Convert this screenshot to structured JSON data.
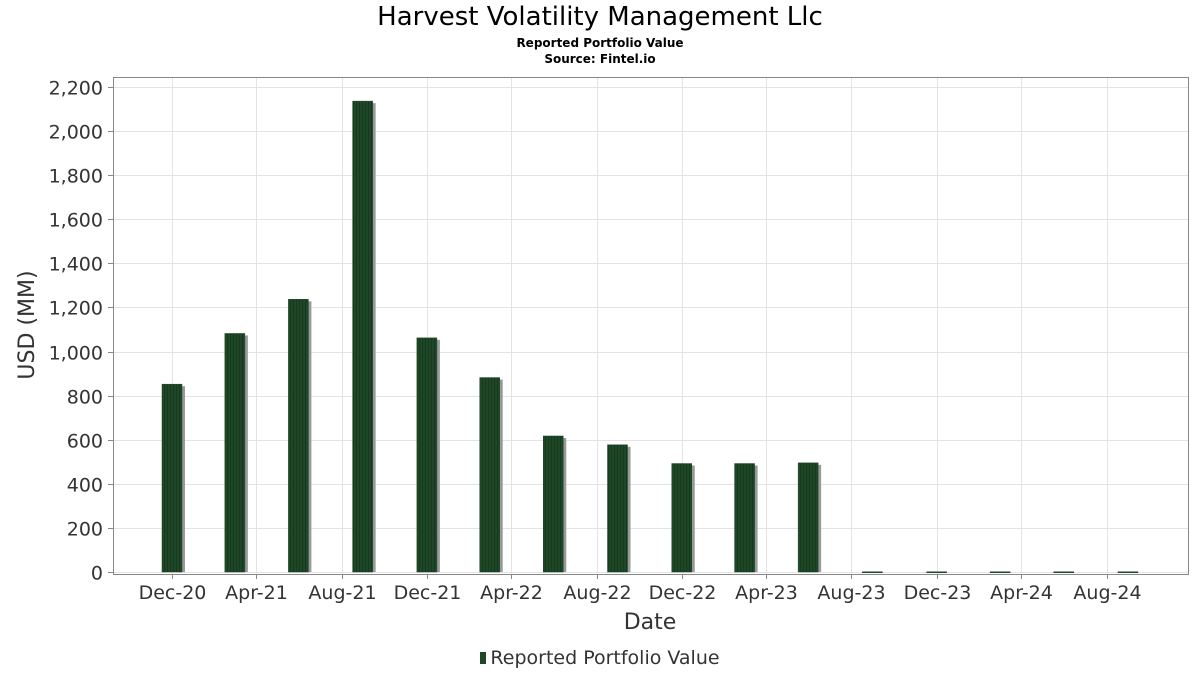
{
  "chart_data": {
    "type": "bar",
    "title": "Harvest Volatility Management Llc",
    "subtitle": "Reported Portfolio Value",
    "source": "Source: Fintel.io",
    "xlabel": "Date",
    "ylabel": "USD (MM)",
    "ylim": [
      0,
      2200
    ],
    "yticks": [
      "0",
      "200",
      "400",
      "600",
      "800",
      "1,000",
      "1,200",
      "1,400",
      "1,600",
      "1,800",
      "2,000",
      "2,200"
    ],
    "xtick_labels": [
      "Dec-20",
      "Apr-21",
      "Aug-21",
      "Dec-21",
      "Apr-22",
      "Aug-22",
      "Dec-22",
      "Apr-23",
      "Aug-23",
      "Dec-23",
      "Apr-24",
      "Aug-24"
    ],
    "grid": true,
    "legend_position": "bottom-center",
    "series": [
      {
        "name": "Reported Portfolio Value",
        "color": "#1e4727",
        "points": [
          {
            "date": "2020-12-31",
            "value": 852
          },
          {
            "date": "2021-03-31",
            "value": 1082
          },
          {
            "date": "2021-06-30",
            "value": 1237
          },
          {
            "date": "2021-09-30",
            "value": 2136
          },
          {
            "date": "2021-12-31",
            "value": 1062
          },
          {
            "date": "2022-03-31",
            "value": 882
          },
          {
            "date": "2022-06-30",
            "value": 617
          },
          {
            "date": "2022-09-30",
            "value": 577
          },
          {
            "date": "2022-12-31",
            "value": 492
          },
          {
            "date": "2023-03-31",
            "value": 492
          },
          {
            "date": "2023-06-30",
            "value": 495
          },
          {
            "date": "2023-09-30",
            "value": 1
          },
          {
            "date": "2023-12-31",
            "value": 1
          },
          {
            "date": "2024-03-31",
            "value": 1
          },
          {
            "date": "2024-06-30",
            "value": 1
          },
          {
            "date": "2024-09-30",
            "value": 1
          }
        ]
      }
    ]
  }
}
